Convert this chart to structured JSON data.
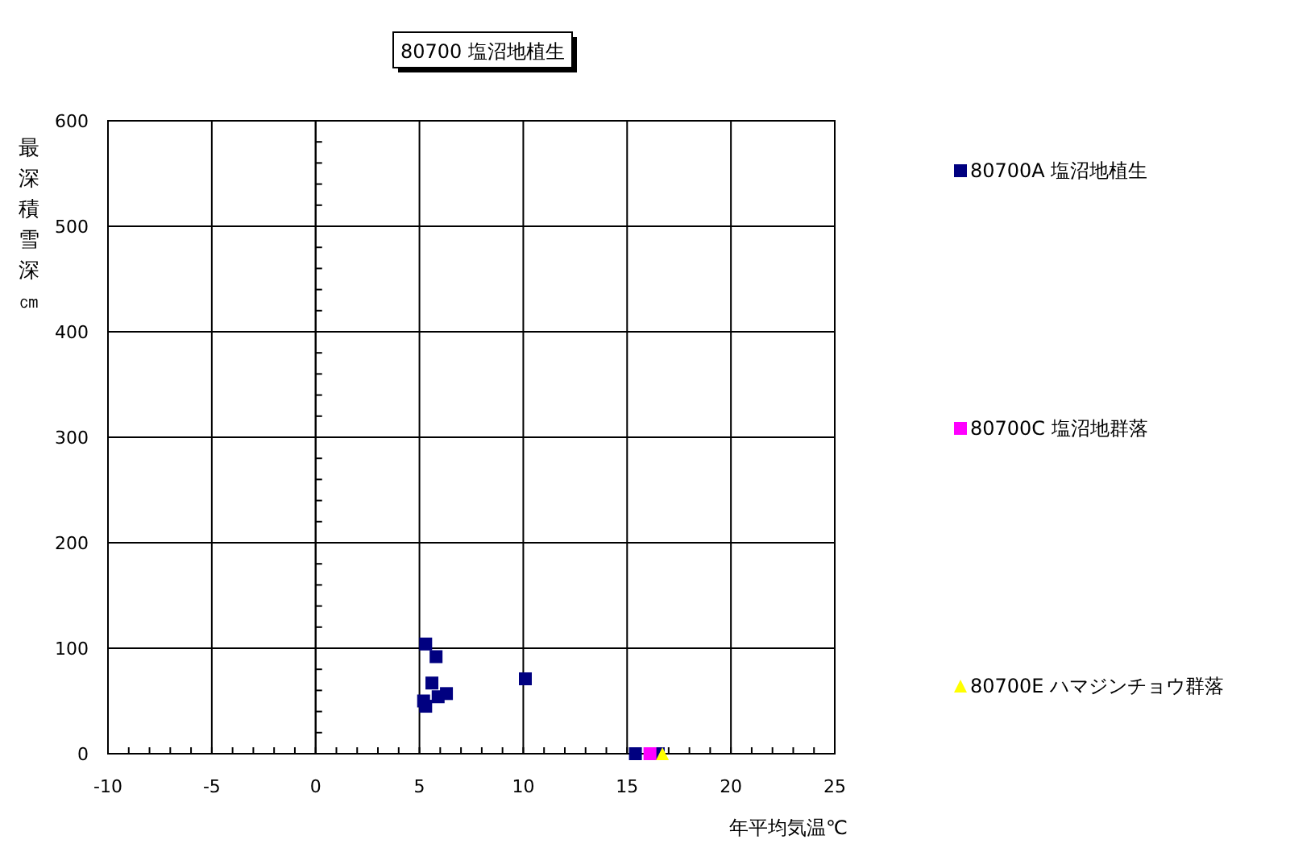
{
  "chart_data": {
    "type": "scatter",
    "title": "80700 塩沼地植生",
    "xlabel": "年平均気温℃",
    "ylabel": "最深積雪深㎝",
    "xlim": [
      -10,
      25
    ],
    "ylim": [
      0,
      600
    ],
    "xticks": [
      -10,
      {
        "value": -9,
        "label": null
      },
      {
        "value": -8,
        "label": null
      },
      {
        "value": -7,
        "label": null
      },
      {
        "value": -6,
        "label": null
      },
      -5,
      {
        "value": -4,
        "label": null
      },
      {
        "value": -3,
        "label": null
      },
      {
        "value": -2,
        "label": null
      },
      {
        "value": -1,
        "label": null
      },
      0,
      {
        "value": 1,
        "label": null
      },
      {
        "value": 2,
        "label": null
      },
      {
        "value": 3,
        "label": null
      },
      {
        "value": 4,
        "label": null
      },
      5,
      {
        "value": 6,
        "label": null
      },
      {
        "value": 7,
        "label": null
      },
      {
        "value": 8,
        "label": null
      },
      {
        "value": 9,
        "label": null
      },
      10,
      {
        "value": 11,
        "label": null
      },
      {
        "value": 12,
        "label": null
      },
      {
        "value": 13,
        "label": null
      },
      {
        "value": 14,
        "label": null
      },
      15,
      {
        "value": 16,
        "label": null
      },
      {
        "value": 17,
        "label": null
      },
      {
        "value": 18,
        "label": null
      },
      {
        "value": 19,
        "label": null
      },
      20,
      {
        "value": 21,
        "label": null
      },
      {
        "value": 22,
        "label": null
      },
      {
        "value": 23,
        "label": null
      },
      {
        "value": 24,
        "label": null
      },
      25
    ],
    "yticks": [
      0,
      {
        "value": 20,
        "label": null
      },
      {
        "value": 40,
        "label": null
      },
      {
        "value": 60,
        "label": null
      },
      {
        "value": 80,
        "label": null
      },
      100,
      {
        "value": 120,
        "label": null
      },
      {
        "value": 140,
        "label": null
      },
      {
        "value": 160,
        "label": null
      },
      {
        "value": 180,
        "label": null
      },
      200,
      {
        "value": 220,
        "label": null
      },
      {
        "value": 240,
        "label": null
      },
      {
        "value": 260,
        "label": null
      },
      {
        "value": 280,
        "label": null
      },
      300,
      {
        "value": 320,
        "label": null
      },
      {
        "value": 340,
        "label": null
      },
      {
        "value": 360,
        "label": null
      },
      {
        "value": 380,
        "label": null
      },
      400,
      {
        "value": 420,
        "label": null
      },
      {
        "value": 440,
        "label": null
      },
      {
        "value": 460,
        "label": null
      },
      {
        "value": 480,
        "label": null
      },
      500,
      {
        "value": 520,
        "label": null
      },
      {
        "value": 540,
        "label": null
      },
      {
        "value": 560,
        "label": null
      },
      {
        "value": 580,
        "label": null
      },
      600
    ],
    "grid": true,
    "legend": "right",
    "series": [
      {
        "name": "80700A 塩沼地植生",
        "color": "#000080",
        "marker": "square",
        "x": [
          5.3,
          5.8,
          5.6,
          6.3,
          5.9,
          5.2,
          5.3,
          10.1,
          15.4,
          16.5
        ],
        "values": [
          104,
          92,
          67,
          57,
          54,
          50,
          45,
          71,
          0,
          0
        ]
      },
      {
        "name": "80700C 塩沼地群落",
        "color": "#ff00ff",
        "marker": "square",
        "x": [
          16.1
        ],
        "values": [
          0
        ]
      },
      {
        "name": "80700E ハマジンチョウ群落",
        "color": "#ffff00",
        "marker": "triangle",
        "x": [
          16.7
        ],
        "values": [
          0
        ]
      }
    ]
  }
}
